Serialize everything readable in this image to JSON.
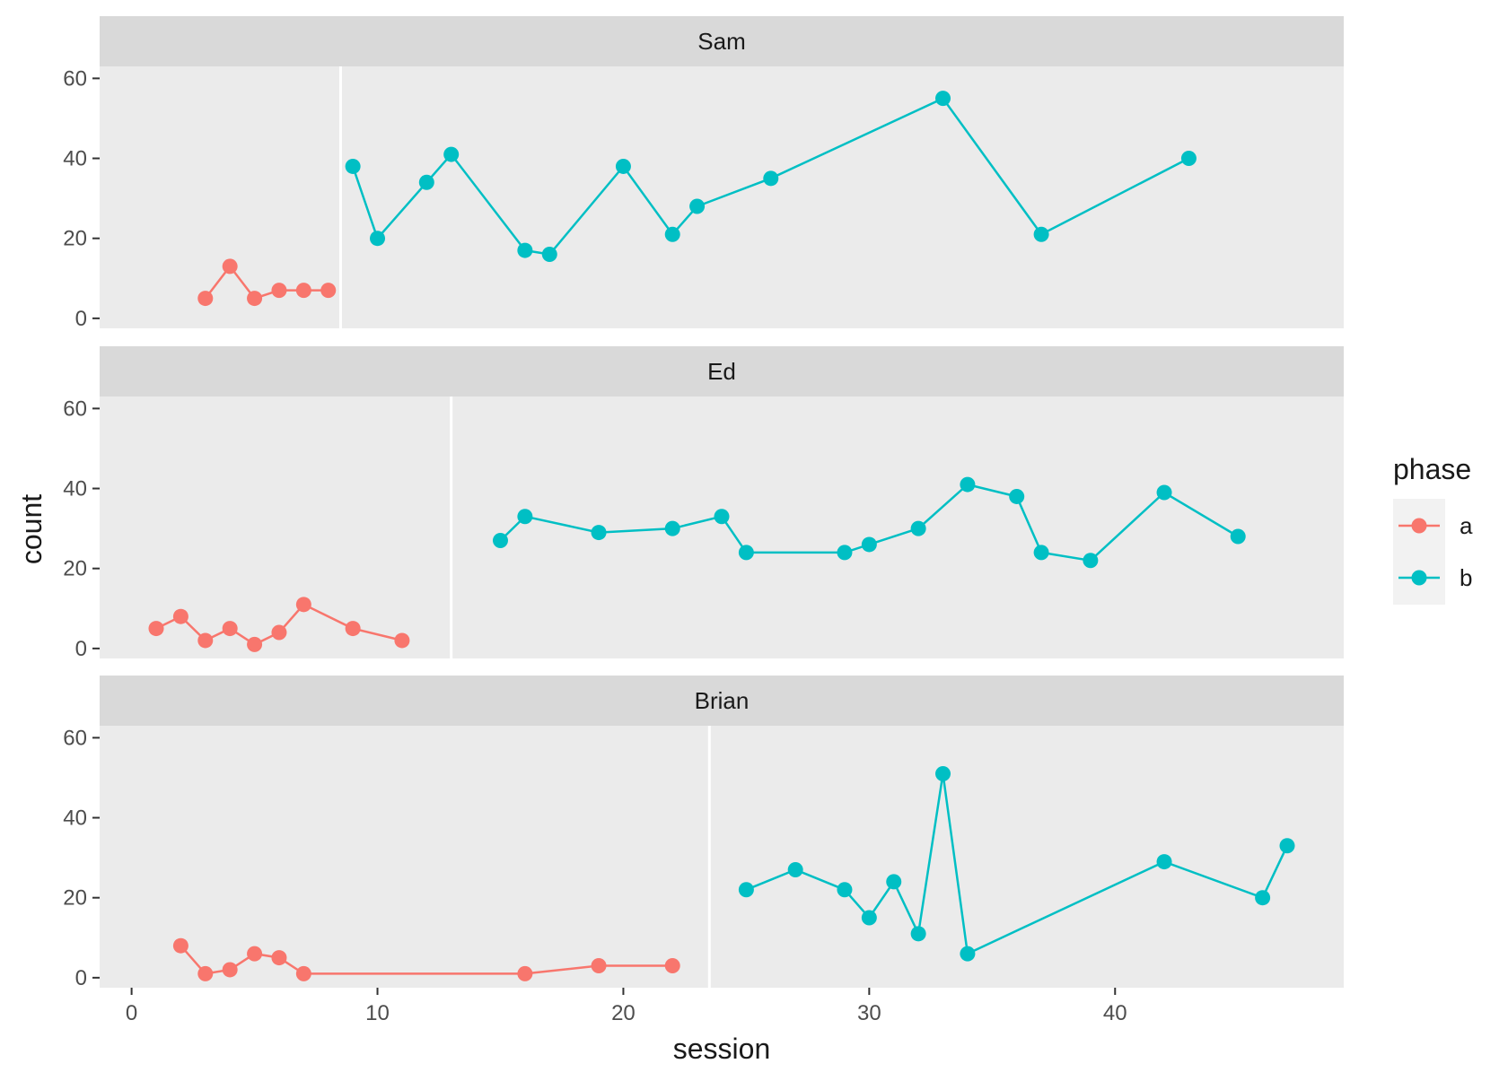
{
  "chart_data": {
    "type": "line",
    "facet_by": "participant",
    "x_label": "session",
    "y_label": "count",
    "x_ticks": [
      0,
      10,
      20,
      30,
      40
    ],
    "y_ticks": [
      0,
      20,
      40,
      60
    ],
    "x_range": [
      -1.3,
      49.3
    ],
    "y_range": [
      -2.5,
      63
    ],
    "grid": true,
    "legend": {
      "title": "phase",
      "position": "right",
      "entries": [
        {
          "label": "a",
          "color": "#F8766D"
        },
        {
          "label": "b",
          "color": "#00BFC4"
        }
      ]
    },
    "panels": [
      {
        "label": "Sam",
        "phase_change_session": 8.5,
        "series": [
          {
            "name": "a",
            "color": "#F8766D",
            "x": [
              3,
              4,
              5,
              6,
              7,
              8
            ],
            "y": [
              5,
              13,
              5,
              7,
              7,
              7
            ]
          },
          {
            "name": "b",
            "color": "#00BFC4",
            "x": [
              9,
              10,
              12,
              13,
              16,
              17,
              20,
              22,
              23,
              26,
              33,
              37,
              43
            ],
            "y": [
              38,
              20,
              34,
              41,
              17,
              16,
              38,
              21,
              28,
              35,
              55,
              21,
              40
            ]
          }
        ]
      },
      {
        "label": "Ed",
        "phase_change_session": 13,
        "series": [
          {
            "name": "a",
            "color": "#F8766D",
            "x": [
              1,
              2,
              3,
              4,
              5,
              6,
              7,
              9,
              11
            ],
            "y": [
              5,
              8,
              2,
              5,
              1,
              4,
              11,
              5,
              2
            ]
          },
          {
            "name": "b",
            "color": "#00BFC4",
            "x": [
              15,
              16,
              19,
              22,
              24,
              25,
              29,
              30,
              32,
              34,
              36,
              37,
              39,
              42,
              45
            ],
            "y": [
              27,
              33,
              29,
              30,
              33,
              24,
              24,
              26,
              30,
              41,
              38,
              24,
              22,
              39,
              28
            ]
          }
        ]
      },
      {
        "label": "Brian",
        "phase_change_session": 23.5,
        "series": [
          {
            "name": "a",
            "color": "#F8766D",
            "x": [
              2,
              3,
              4,
              5,
              6,
              7,
              16,
              19,
              22
            ],
            "y": [
              8,
              1,
              2,
              6,
              5,
              1,
              1,
              3,
              3
            ]
          },
          {
            "name": "b",
            "color": "#00BFC4",
            "x": [
              25,
              27,
              29,
              30,
              31,
              32,
              33,
              34,
              42,
              46,
              47
            ],
            "y": [
              22,
              27,
              22,
              15,
              24,
              11,
              51,
              6,
              29,
              20,
              33
            ]
          }
        ]
      }
    ]
  },
  "style": {
    "panel_bg": "#EBEBEB",
    "strip_bg": "#D9D9D9",
    "grid_major": "#FFFFFF",
    "text_color": "#1A1A1A",
    "tick_text_color": "#4D4D4D"
  }
}
